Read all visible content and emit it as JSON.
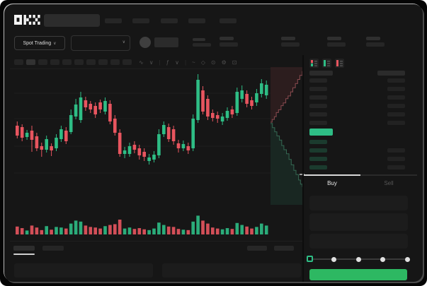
{
  "app": {
    "logo_text": "OKX",
    "colors": {
      "green": "#2ebd85",
      "red": "#e8555f",
      "button_green": "#2db862",
      "depth_ask_line": "#8a4b50",
      "depth_bid_line": "#356853",
      "grid": "#1e1e1e",
      "placeholder_bar": "#262626",
      "placeholder_bar_light": "#2f2f2f",
      "panel_box": "#1c1c1c"
    }
  },
  "header": {
    "logo_text": "OKX",
    "search": {
      "placeholder": ""
    },
    "nav_items": [
      "",
      "",
      "",
      "",
      ""
    ],
    "market_selector": {
      "label": "Spot Trading",
      "chevron": "∨"
    },
    "pair_selector": {
      "value": "",
      "chevron": "∨"
    },
    "stats_pairs": 4
  },
  "chart_toolbar": {
    "timeframes": [
      "",
      "",
      "",
      "",
      "",
      "",
      "",
      "",
      "",
      ""
    ],
    "active_timeframe_index": 1,
    "tool_icons": [
      {
        "name": "candle-type-icon",
        "glyph": "∿"
      },
      {
        "name": "chevron-down-icon",
        "glyph": "∨"
      },
      {
        "name": "divider",
        "glyph": "|"
      },
      {
        "name": "indicators-icon",
        "glyph": "ƒ"
      },
      {
        "name": "chevron-down-icon",
        "glyph": "∨"
      },
      {
        "name": "divider",
        "glyph": "|"
      },
      {
        "name": "line-tool-icon",
        "glyph": "~"
      },
      {
        "name": "draw-icon",
        "glyph": "◇"
      },
      {
        "name": "screenshot-icon",
        "glyph": "⊙"
      },
      {
        "name": "settings-icon",
        "glyph": "⚙"
      },
      {
        "name": "fullscreen-icon",
        "glyph": "⊡"
      }
    ]
  },
  "chart_data": {
    "type": "candlestick",
    "title": "",
    "xlabel": "",
    "ylabel": "",
    "ylim": [
      0,
      200
    ],
    "grid": "horizontal-only",
    "gridline_prices": [
      45,
      83,
      122,
      158
    ],
    "candles_ohlc": [
      [
        112,
        118,
        94,
        98
      ],
      [
        110,
        114,
        90,
        95
      ],
      [
        96,
        106,
        92,
        102
      ],
      [
        105,
        112,
        75,
        92
      ],
      [
        97,
        102,
        76,
        80
      ],
      [
        83,
        88,
        68,
        78
      ],
      [
        78,
        98,
        74,
        93
      ],
      [
        83,
        87,
        69,
        77
      ],
      [
        80,
        100,
        76,
        95
      ],
      [
        93,
        112,
        89,
        107
      ],
      [
        105,
        110,
        86,
        90
      ],
      [
        103,
        135,
        100,
        127
      ],
      [
        125,
        150,
        121,
        142
      ],
      [
        120,
        160,
        116,
        152
      ],
      [
        148,
        153,
        133,
        138
      ],
      [
        143,
        147,
        130,
        135
      ],
      [
        140,
        145,
        123,
        128
      ],
      [
        145,
        149,
        130,
        135
      ],
      [
        132,
        152,
        128,
        147
      ],
      [
        143,
        148,
        114,
        118
      ],
      [
        122,
        127,
        98,
        102
      ],
      [
        102,
        107,
        68,
        72
      ],
      [
        72,
        82,
        66,
        77
      ],
      [
        72,
        88,
        68,
        83
      ],
      [
        85,
        90,
        73,
        78
      ],
      [
        80,
        85,
        64,
        70
      ],
      [
        75,
        80,
        62,
        68
      ],
      [
        62,
        72,
        57,
        67
      ],
      [
        64,
        76,
        60,
        71
      ],
      [
        70,
        107,
        66,
        100
      ],
      [
        100,
        118,
        96,
        113
      ],
      [
        110,
        115,
        89,
        93
      ],
      [
        107,
        112,
        85,
        90
      ],
      [
        87,
        92,
        74,
        80
      ],
      [
        80,
        91,
        76,
        86
      ],
      [
        83,
        88,
        72,
        77
      ],
      [
        80,
        128,
        76,
        122
      ],
      [
        120,
        185,
        116,
        177
      ],
      [
        162,
        168,
        128,
        132
      ],
      [
        150,
        155,
        120,
        125
      ],
      [
        130,
        135,
        118,
        123
      ],
      [
        127,
        132,
        116,
        122
      ],
      [
        118,
        130,
        113,
        125
      ],
      [
        123,
        138,
        119,
        133
      ],
      [
        135,
        140,
        123,
        128
      ],
      [
        130,
        166,
        126,
        160
      ],
      [
        150,
        169,
        145,
        162
      ],
      [
        157,
        162,
        138,
        143
      ],
      [
        148,
        153,
        135,
        140
      ],
      [
        145,
        164,
        140,
        158
      ],
      [
        157,
        178,
        152,
        172
      ],
      [
        155,
        176,
        150,
        170
      ]
    ],
    "volumes": [
      40,
      32,
      20,
      45,
      35,
      22,
      42,
      24,
      38,
      35,
      30,
      55,
      70,
      65,
      45,
      38,
      35,
      30,
      42,
      48,
      52,
      75,
      30,
      35,
      28,
      32,
      26,
      22,
      30,
      60,
      48,
      40,
      38,
      28,
      24,
      22,
      65,
      95,
      70,
      55,
      35,
      30,
      26,
      32,
      28,
      58,
      48,
      40,
      30,
      38,
      55,
      45
    ],
    "depth": {
      "asks": [
        [
          0,
          0.4
        ],
        [
          0.05,
          0.38
        ],
        [
          0.12,
          0.36
        ],
        [
          0.18,
          0.33
        ],
        [
          0.25,
          0.31
        ],
        [
          0.33,
          0.28
        ],
        [
          0.4,
          0.26
        ],
        [
          0.48,
          0.23
        ],
        [
          0.55,
          0.21
        ],
        [
          0.63,
          0.18
        ],
        [
          0.7,
          0.15
        ],
        [
          0.78,
          0.12
        ],
        [
          0.85,
          0.09
        ],
        [
          0.92,
          0.06
        ],
        [
          1,
          0.03
        ]
      ],
      "bids": [
        [
          0,
          0.41
        ],
        [
          0.06,
          0.44
        ],
        [
          0.13,
          0.47
        ],
        [
          0.2,
          0.5
        ],
        [
          0.28,
          0.53
        ],
        [
          0.35,
          0.57
        ],
        [
          0.42,
          0.6
        ],
        [
          0.5,
          0.63
        ],
        [
          0.58,
          0.67
        ],
        [
          0.65,
          0.71
        ],
        [
          0.73,
          0.75
        ],
        [
          0.8,
          0.78
        ],
        [
          0.88,
          0.82
        ],
        [
          0.94,
          0.85
        ],
        [
          1,
          0.87
        ]
      ]
    },
    "last_price_marker_side": "right"
  },
  "orderbook": {
    "view_icons": [
      "combined",
      "bids",
      "asks"
    ],
    "asks_rows": 6,
    "bids_rows": 4,
    "bids_amount_rows": [
      false,
      true,
      true,
      true
    ],
    "last_price_highlight": "green"
  },
  "trade_form": {
    "tabs": {
      "buy": "Buy",
      "sell": "Sell",
      "active": "buy"
    },
    "inputs": [
      "",
      "",
      ""
    ],
    "slider_stops": [
      0,
      25,
      50,
      75,
      100
    ],
    "slider_active_index": 0,
    "submit_label": ""
  },
  "bottom_panel": {
    "tabs": [
      "",
      ""
    ],
    "active_tab_index": 0,
    "right_links": [
      "",
      ""
    ],
    "panels": [
      "",
      ""
    ]
  }
}
